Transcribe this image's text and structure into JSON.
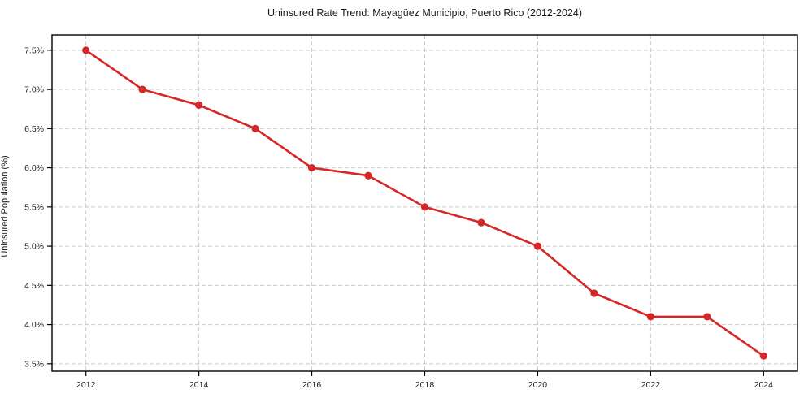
{
  "chart_data": {
    "type": "line",
    "title": "Uninsured Rate Trend: Mayagüez Municipio, Puerto Rico (2012-2024)",
    "xlabel": "",
    "ylabel": "Uninsured Population (%)",
    "x": [
      2012,
      2013,
      2014,
      2015,
      2016,
      2017,
      2018,
      2019,
      2020,
      2021,
      2022,
      2023,
      2024
    ],
    "values": [
      7.5,
      7.0,
      6.8,
      6.5,
      6.0,
      5.9,
      5.5,
      5.3,
      5.0,
      4.4,
      4.1,
      4.1,
      3.6
    ],
    "xtick_values": [
      2012,
      2014,
      2016,
      2018,
      2020,
      2022,
      2024
    ],
    "xtick_labels": [
      "2012",
      "2014",
      "2016",
      "2018",
      "2020",
      "2022",
      "2024"
    ],
    "ytick_values": [
      3.5,
      4.0,
      4.5,
      5.0,
      5.5,
      6.0,
      6.5,
      7.0,
      7.5
    ],
    "ytick_labels": [
      "3.5%",
      "4.0%",
      "4.5%",
      "5.0%",
      "5.5%",
      "6.0%",
      "6.5%",
      "7.0%",
      "7.5%"
    ],
    "xlim": [
      2011.4,
      2024.6
    ],
    "ylim": [
      3.405,
      7.695
    ],
    "grid": true,
    "legend": "none",
    "colors": {
      "line": "#d62728",
      "marker": "#d62728",
      "grid": "#c9c9c9",
      "spine": "#000000",
      "background": "#ffffff"
    }
  }
}
